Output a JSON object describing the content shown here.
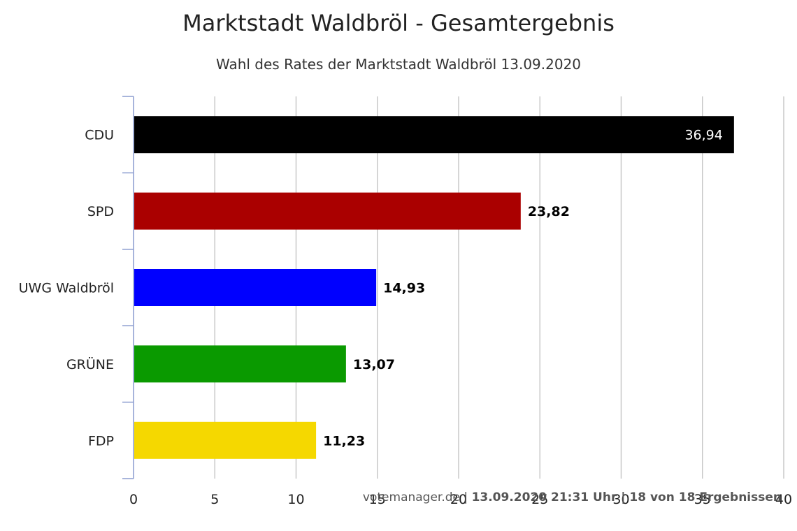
{
  "chart_data": {
    "type": "bar",
    "orientation": "horizontal",
    "title": "Marktstadt Waldbröl - Gesamtergebnis",
    "subtitle": "Wahl des Rates der Marktstadt Waldbröl 13.09.2020",
    "categories": [
      "CDU",
      "SPD",
      "UWG Waldbröl",
      "GRÜNE",
      "FDP"
    ],
    "values": [
      36.94,
      23.82,
      14.93,
      13.07,
      11.23
    ],
    "value_labels": [
      "36,94",
      "23,82",
      "14,93",
      "13,07",
      "11,23"
    ],
    "colors": [
      "#000000",
      "#aa0000",
      "#0000ff",
      "#0a9a00",
      "#f5d800"
    ],
    "xlim": [
      0,
      40
    ],
    "x_ticks": [
      0,
      5,
      10,
      15,
      20,
      25,
      30,
      35,
      40
    ],
    "xlabel": "",
    "ylabel": "",
    "grid": true,
    "legend": "none"
  },
  "credits": {
    "source": "votemanager.de",
    "separator": " | ",
    "status": "13.09.2020 21:31 Uhr | 18 von 18 Ergebnissen"
  }
}
